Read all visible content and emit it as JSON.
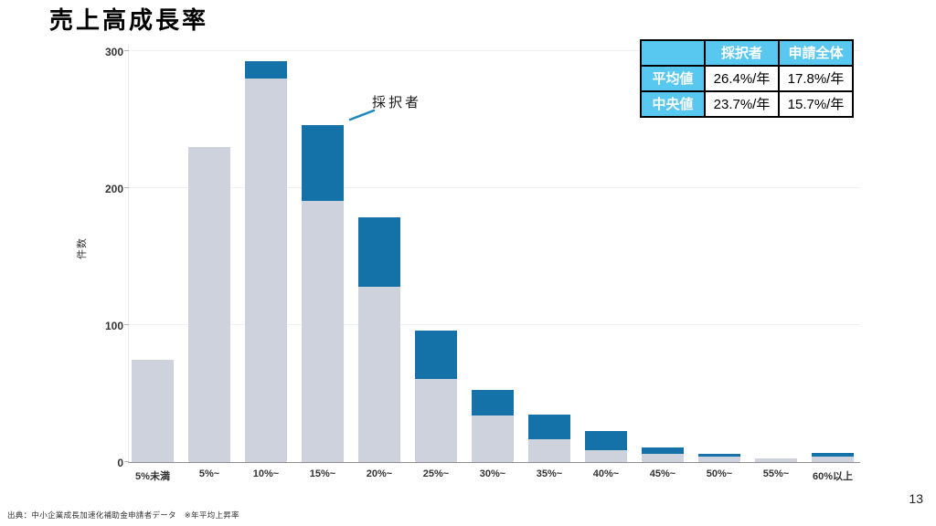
{
  "title": "売上高成長率",
  "page_number": "13",
  "source_note": "出典：中小企業成長加速化補助金申請者データ　※年平均上昇率",
  "annotation": {
    "label": "採択者",
    "target_category": "15%~"
  },
  "colors": {
    "bar_gray": "#cdd2dd",
    "bar_blue": "#1572a9",
    "table_header_bg": "#58c8f0",
    "table_header_text": "#ffffff",
    "table_border": "#000000",
    "annotation_line": "#1f86bf",
    "axis_line": "#8f8f8f",
    "gridline": "#f0f0f0",
    "tick_text": "#333333"
  },
  "table": {
    "col_headers": [
      "",
      "採択者",
      "申請全体"
    ],
    "rows": [
      {
        "label": "平均値",
        "values": [
          "26.4%/年",
          "17.8%/年"
        ]
      },
      {
        "label": "中央値",
        "values": [
          "23.7%/年",
          "15.7%/年"
        ]
      }
    ]
  },
  "chart_data": {
    "type": "bar",
    "stacked": true,
    "title": "売上高成長率",
    "xlabel": "",
    "ylabel": "件数",
    "ylim": [
      0,
      300
    ],
    "yticks": [
      0,
      100,
      200,
      300
    ],
    "grid": true,
    "legend_position": "none",
    "categories": [
      "5%未満",
      "5%~",
      "10%~",
      "15%~",
      "20%~",
      "25%~",
      "30%~",
      "35%~",
      "40%~",
      "45%~",
      "50%~",
      "55%~",
      "60%以上"
    ],
    "series": [
      {
        "name": "base",
        "color": "#cdd2dd",
        "values": [
          75,
          230,
          280,
          191,
          128,
          61,
          34,
          17,
          9,
          6,
          4,
          3,
          4
        ]
      },
      {
        "name": "採択者",
        "color": "#1572a9",
        "values": [
          0,
          0,
          13,
          55,
          51,
          35,
          19,
          18,
          14,
          5,
          2,
          0,
          3
        ]
      }
    ],
    "totals": [
      75,
      230,
      293,
      246,
      179,
      96,
      53,
      35,
      23,
      11,
      6,
      3,
      7
    ]
  }
}
